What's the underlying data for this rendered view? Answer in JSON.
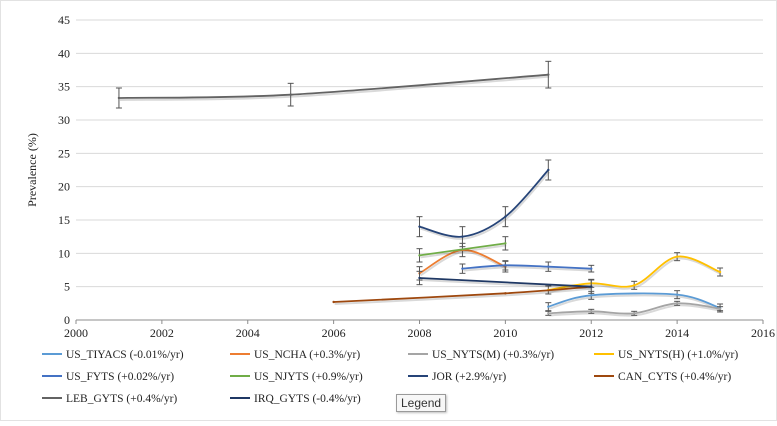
{
  "chart_data": {
    "type": "line",
    "title": "",
    "xlabel": "",
    "ylabel": "Prevalence (%)",
    "xlim": [
      2000,
      2016
    ],
    "ylim": [
      0,
      45
    ],
    "x_ticks": [
      2000,
      2002,
      2004,
      2006,
      2008,
      2010,
      2012,
      2014,
      2016
    ],
    "y_ticks": [
      0,
      5,
      10,
      15,
      20,
      25,
      30,
      35,
      40,
      45
    ],
    "grid": "horizontal",
    "legend_placement": "bottom",
    "series": [
      {
        "name": "US_TIYACS (-0.01%/yr)",
        "color": "#5b9bd5",
        "x": [
          2011,
          2012,
          2014,
          2015
        ],
        "y": [
          2.0,
          3.7,
          3.8,
          1.8
        ],
        "err": [
          0.6,
          0.6,
          0.6,
          0.6
        ]
      },
      {
        "name": "US_NCHA (+0.3%/yr)",
        "color": "#ed7d31",
        "x": [
          2008,
          2009,
          2010
        ],
        "y": [
          7.0,
          10.5,
          8.0
        ],
        "err": [
          1.0,
          1.0,
          0.8
        ]
      },
      {
        "name": "US_NYTS(M) (+0.3%/yr)",
        "color": "#a5a5a5",
        "x": [
          2011,
          2012,
          2013,
          2014,
          2015
        ],
        "y": [
          1.0,
          1.3,
          1.0,
          2.5,
          1.7
        ],
        "err": [
          0.3,
          0.3,
          0.3,
          0.3,
          0.3
        ]
      },
      {
        "name": "US_NYTS(H) (+1.0%/yr)",
        "color": "#ffc000",
        "x": [
          2011,
          2012,
          2013,
          2014,
          2015
        ],
        "y": [
          4.5,
          5.5,
          5.2,
          9.5,
          7.2
        ],
        "err": [
          0.6,
          0.6,
          0.6,
          0.6,
          0.6
        ]
      },
      {
        "name": "US_FYTS (+0.02%/yr)",
        "color": "#4472c4",
        "x": [
          2009,
          2010,
          2011,
          2012
        ],
        "y": [
          7.7,
          8.2,
          8.0,
          7.7
        ],
        "err": [
          0.7,
          0.7,
          0.7,
          0.5
        ]
      },
      {
        "name": "US_NJYTS (+0.9%/yr)",
        "color": "#70ad47",
        "x": [
          2008,
          2010
        ],
        "y": [
          9.7,
          11.5
        ],
        "err": [
          1.0,
          1.0
        ]
      },
      {
        "name": "JOR (+2.9%/yr)",
        "color": "#264478",
        "x": [
          2008,
          2009,
          2010,
          2011
        ],
        "y": [
          14.0,
          12.5,
          15.5,
          22.5
        ],
        "err": [
          1.5,
          1.5,
          1.5,
          1.5
        ]
      },
      {
        "name": "CAN_CYTS (+0.4%/yr)",
        "color": "#9e480e",
        "x": [
          2006,
          2010,
          2012
        ],
        "y": [
          2.7,
          4.0,
          5.0
        ],
        "err": [
          0,
          0,
          0
        ]
      },
      {
        "name": "LEB_GYTS (+0.4%/yr)",
        "color": "#636363",
        "x": [
          2001,
          2005,
          2011
        ],
        "y": [
          33.3,
          33.8,
          36.8
        ],
        "err": [
          1.5,
          1.7,
          2.0
        ]
      },
      {
        "name": "IRQ_GYTS (-0.4%/yr)",
        "color": "#1f3864",
        "x": [
          2008,
          2012
        ],
        "y": [
          6.3,
          5.0
        ],
        "err": [
          1.0,
          1.0
        ]
      }
    ]
  },
  "tooltip": {
    "label": "Legend"
  }
}
